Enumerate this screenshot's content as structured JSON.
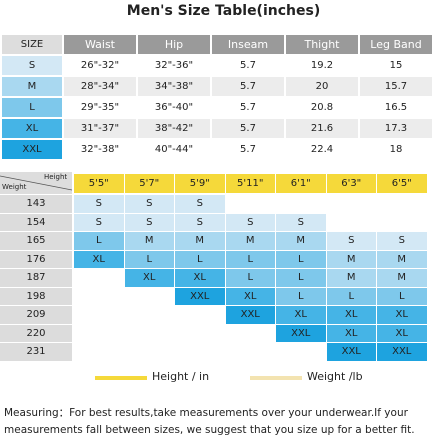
{
  "title": "Men's  Size Table(inches)",
  "size_table": {
    "columns": [
      "SIZE",
      "Waist",
      "Hip",
      "Inseam",
      "Thight",
      "Leg Band"
    ],
    "rows": [
      [
        "S",
        "26\"-32\"",
        "32\"-36\"",
        5.7,
        19.2,
        15
      ],
      [
        "M",
        "28\"-34\"",
        "34\"-38\"",
        5.7,
        20,
        15.7
      ],
      [
        "L",
        "29\"-35\"",
        "36\"-40\"",
        5.7,
        20.8,
        16.5
      ],
      [
        "XL",
        "31\"-37\"",
        "38\"-42\"",
        5.7,
        21.6,
        17.3
      ],
      [
        "XXL",
        "32\"-38\"",
        "40\"-44\"",
        5.7,
        22.4,
        18
      ]
    ]
  },
  "fit_chart": {
    "weight_label": "Weight",
    "height_label": "Height",
    "heights": [
      "5'5\"",
      "5'7\"",
      "5'9\"",
      "5'11\"",
      "6'1\"",
      "6'3\"",
      "6'5\""
    ],
    "weights": [
      143,
      154,
      165,
      176,
      187,
      198,
      209,
      220,
      231
    ],
    "cells": [
      [
        "S",
        "S",
        "S",
        null,
        null,
        null,
        null
      ],
      [
        "S",
        "S",
        "S",
        "S",
        "S",
        null,
        null
      ],
      [
        "L",
        "M",
        "M",
        "M",
        "M",
        "S",
        "S"
      ],
      [
        "XL",
        "L",
        "L",
        "L",
        "L",
        "M",
        "M"
      ],
      [
        null,
        "XL",
        "XL",
        "L",
        "L",
        "M",
        "M"
      ],
      [
        null,
        null,
        "XXL",
        "XL",
        "L",
        "L",
        "L"
      ],
      [
        null,
        null,
        null,
        "XXL",
        "XL",
        "XL",
        "XL"
      ],
      [
        null,
        null,
        null,
        null,
        "XXL",
        "XL",
        "XL"
      ],
      [
        null,
        null,
        null,
        null,
        null,
        "XXL",
        "XXL"
      ]
    ],
    "size_colors": {
      "S": "#d3e8f5",
      "M": "#a9d8f0",
      "L": "#7ec8eb",
      "XL": "#45b4e6",
      "XXL": "#1ea3df"
    }
  },
  "legend": [
    {
      "label": "Height / in",
      "color": "#f5d93a"
    },
    {
      "label": "Weight /lb",
      "color": "#f3e3b0"
    }
  ],
  "note": [
    "Measuring：For best results,take measurements over your underwear.If your",
    "measurements fall between sizes, we suggest that you size up for a better fit."
  ]
}
